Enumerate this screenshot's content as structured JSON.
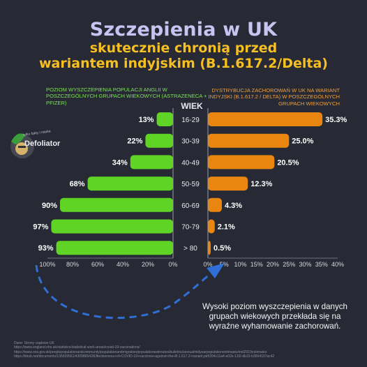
{
  "title": "Szczepienia w UK",
  "subtitle_line1": "skutecznie chronią przed",
  "subtitle_line2": "wariantem indyjskim (B.1.617.2/Delta)",
  "left_header": "POZIOM WYSZCZEPIENIA POPULACJI ANGLII W POSZCZEGÓLNYCH GRUPACH WIEKOWYCH (ASTRAZENECA + PFIZER)",
  "right_header": "DYSTRYBUCJA ZACHOROWAŃ W UK NA WARIANT INDYJSKI (B.1.617.2 / DELTA) W POSZCZEGÓLNYCH GRUPACH WIEKOWYCH",
  "age_axis_title": "WIEK",
  "logo": {
    "small": "tylko fakty i nauka",
    "name": "Defoliator"
  },
  "note": "Wysoki poziom wyszczepienia w danych grupach wiekowych przekłada się na wyraźne wyhamowanie zachorowań.",
  "sources": [
    "Dane: Strony rządowe UK",
    "https://www.england.nhs.uk/statistics/statistical-work-areas/covid-19-vaccinations/",
    "https://www.ons.gov.uk/peoplepopulationandcommunity/populationandmigration/populationestimates/bulletins/annualmidyearpopulationestimates/mid2019estimates",
    "https://khub.net/documents/135939561/430986542/Effectiveness+of+COVID-19+vaccines+against+the+B.1.617.2+variant.pdf/204c11a4-e02e-11f2-db19-b3664107ac42"
  ],
  "colors": {
    "background": "#272a34",
    "green": "#5fd424",
    "orange": "#e8860f",
    "title": "#c9c3f2",
    "subtitle": "#f6bf22",
    "arrow": "#2f6fd6"
  },
  "chart_data": [
    {
      "type": "bar",
      "orientation": "horizontal",
      "direction": "right-to-left",
      "categories": [
        "16-29",
        "30-39",
        "40-49",
        "50-59",
        "60-69",
        "70-79",
        "> 80"
      ],
      "values": [
        13,
        22,
        34,
        68,
        90,
        97,
        93
      ],
      "value_labels": [
        "13%",
        "22%",
        "34%",
        "68%",
        "90%",
        "97%",
        "93%"
      ],
      "xlim": [
        0,
        100
      ],
      "ticks": [
        "100%",
        "80%",
        "60%",
        "40%",
        "20%",
        "0%"
      ],
      "tick_values": [
        100,
        80,
        60,
        40,
        20,
        0
      ],
      "color": "#5fd424"
    },
    {
      "type": "bar",
      "orientation": "horizontal",
      "categories": [
        "16-29",
        "30-39",
        "40-49",
        "50-59",
        "60-69",
        "70-79",
        "> 80"
      ],
      "values": [
        35.3,
        25.0,
        20.5,
        12.3,
        4.3,
        2.1,
        0.5
      ],
      "value_labels": [
        "35.3%",
        "25.0%",
        "20.5%",
        "12.3%",
        "4.3%",
        "2.1%",
        "0.5%"
      ],
      "xlim": [
        0,
        40
      ],
      "ticks": [
        "0%",
        "5%",
        "10%",
        "15%",
        "20%",
        "25%",
        "30%",
        "35%",
        "40%"
      ],
      "tick_values": [
        0,
        5,
        10,
        15,
        20,
        25,
        30,
        35,
        40
      ],
      "color": "#e8860f"
    }
  ]
}
